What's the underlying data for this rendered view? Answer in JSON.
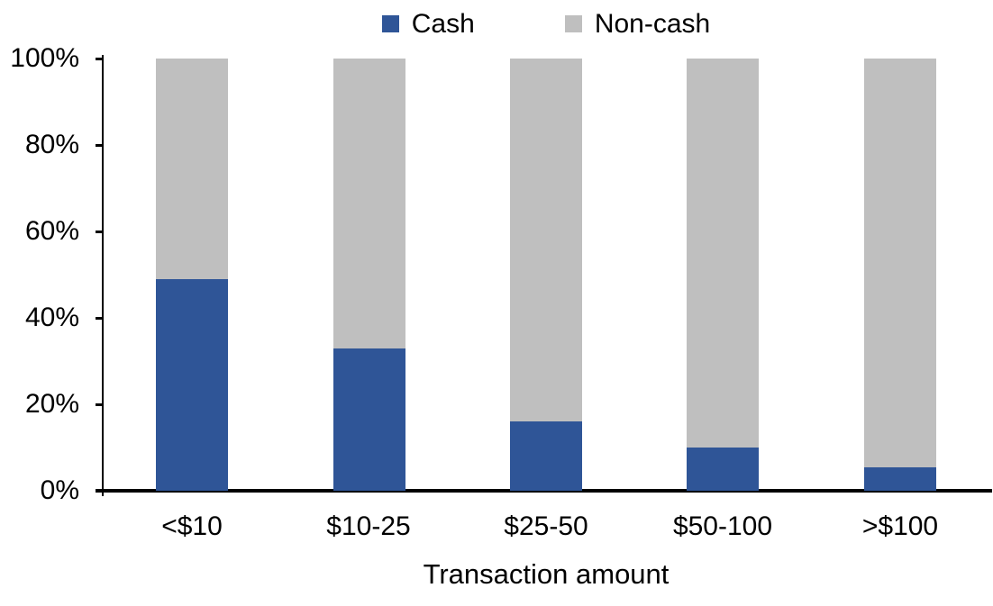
{
  "chart_data": {
    "type": "bar",
    "stacked": true,
    "percent_stacked": true,
    "title": "",
    "xlabel": "Transaction amount",
    "ylabel": "",
    "categories": [
      "<$10",
      "$10-25",
      "$25-50",
      "$50-100",
      ">$100"
    ],
    "series": [
      {
        "name": "Cash",
        "color": "#2F5597",
        "values": [
          49,
          33,
          16,
          10,
          5.5
        ]
      },
      {
        "name": "Non-cash",
        "color": "#BFBFBF",
        "values": [
          51,
          67,
          84,
          90,
          94.5
        ]
      }
    ],
    "ylim": [
      0,
      100
    ],
    "ytick_step": 20,
    "yticks": [
      "0%",
      "20%",
      "40%",
      "60%",
      "80%",
      "100%"
    ],
    "legend_position": "top",
    "grid": false,
    "axis_color": "#000000",
    "background_color": "#FFFFFF"
  }
}
